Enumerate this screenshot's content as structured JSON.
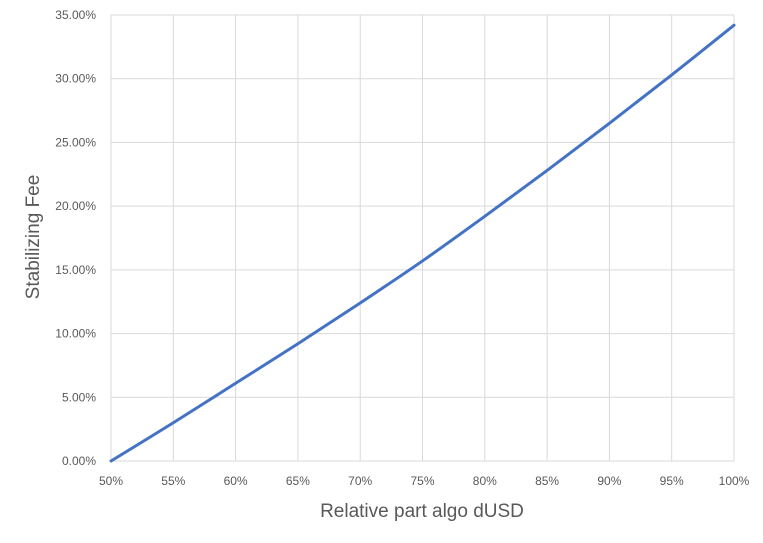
{
  "chart_data": {
    "type": "line",
    "title": "",
    "xlabel": "Relative part algo dUSD",
    "ylabel": "Stabilizing Fee",
    "xlim": [
      50,
      100
    ],
    "ylim": [
      0,
      35
    ],
    "x_tick_labels": [
      "50%",
      "55%",
      "60%",
      "65%",
      "70%",
      "75%",
      "80%",
      "85%",
      "90%",
      "95%",
      "100%"
    ],
    "y_tick_labels": [
      "0.00%",
      "5.00%",
      "10.00%",
      "15.00%",
      "20.00%",
      "25.00%",
      "30.00%",
      "35.00%"
    ],
    "grid": true,
    "legend": "none",
    "series": [
      {
        "color": "#4472c4",
        "x": [
          50,
          55,
          60,
          65,
          70,
          75,
          80,
          85,
          90,
          95,
          100
        ],
        "y": [
          0.0,
          3.0,
          6.1,
          9.2,
          12.4,
          15.7,
          19.2,
          22.8,
          26.5,
          30.3,
          34.2
        ]
      }
    ]
  }
}
